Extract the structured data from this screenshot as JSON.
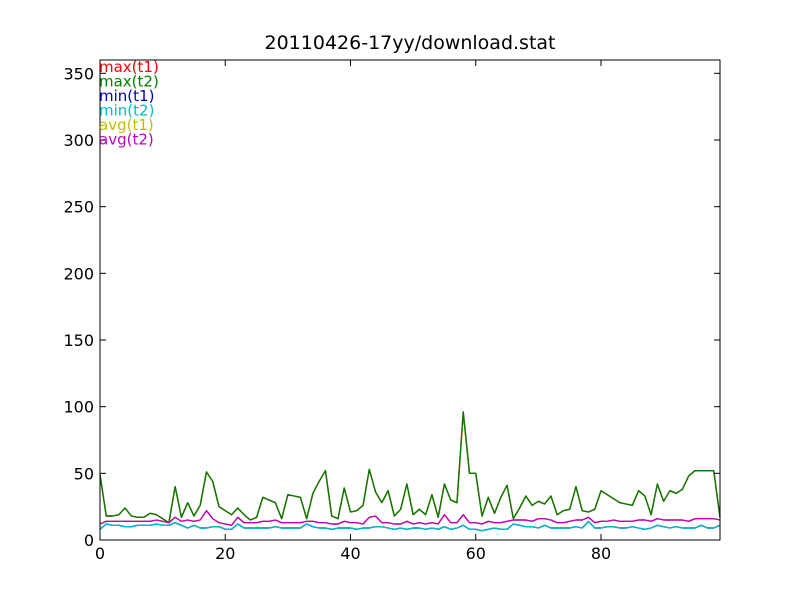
{
  "chart_data": {
    "type": "line",
    "title": "20110426-17yy/download.stat",
    "xlabel": "",
    "ylabel": "",
    "xlim": [
      0,
      99
    ],
    "ylim": [
      0,
      360
    ],
    "xticks": [
      0,
      20,
      40,
      60,
      80
    ],
    "yticks": [
      0,
      50,
      100,
      150,
      200,
      250,
      300,
      350
    ],
    "grid": false,
    "legend_position": "top-left",
    "x": [
      0,
      1,
      2,
      3,
      4,
      5,
      6,
      7,
      8,
      9,
      10,
      11,
      12,
      13,
      14,
      15,
      16,
      17,
      18,
      19,
      20,
      21,
      22,
      23,
      24,
      25,
      26,
      27,
      28,
      29,
      30,
      31,
      32,
      33,
      34,
      35,
      36,
      37,
      38,
      39,
      40,
      41,
      42,
      43,
      44,
      45,
      46,
      47,
      48,
      49,
      50,
      51,
      52,
      53,
      54,
      55,
      56,
      57,
      58,
      59,
      60,
      61,
      62,
      63,
      64,
      65,
      66,
      67,
      68,
      69,
      70,
      71,
      72,
      73,
      74,
      75,
      76,
      77,
      78,
      79,
      80,
      81,
      82,
      83,
      84,
      85,
      86,
      87,
      88,
      89,
      90,
      91,
      92,
      93,
      94,
      95,
      96,
      97,
      98,
      99
    ],
    "series": [
      {
        "name": "max(t1)",
        "color": "#ff0000",
        "values": [
          49,
          18,
          18,
          19,
          24,
          18,
          17,
          17,
          20,
          19,
          16,
          13,
          40,
          17,
          28,
          18,
          26,
          51,
          44,
          25,
          22,
          19,
          24,
          19,
          15,
          17,
          32,
          30,
          28,
          16,
          34,
          33,
          32,
          16,
          35,
          44,
          52,
          18,
          16,
          39,
          21,
          22,
          26,
          53,
          36,
          28,
          37,
          18,
          23,
          42,
          19,
          23,
          19,
          34,
          17,
          42,
          30,
          28,
          96,
          50,
          50,
          18,
          32,
          20,
          32,
          41,
          16,
          24,
          33,
          26,
          29,
          27,
          33,
          19,
          22,
          23,
          40,
          22,
          21,
          23,
          37,
          34,
          31,
          28,
          27,
          26,
          37,
          33,
          19,
          42,
          29,
          37,
          35,
          38,
          48,
          52,
          52,
          52,
          52,
          17
        ]
      },
      {
        "name": "max(t2)",
        "color": "#008000",
        "values": [
          49,
          18,
          18,
          19,
          24,
          18,
          17,
          17,
          20,
          19,
          16,
          13,
          40,
          17,
          28,
          18,
          26,
          51,
          44,
          25,
          22,
          19,
          24,
          19,
          15,
          17,
          32,
          30,
          28,
          16,
          34,
          33,
          32,
          16,
          35,
          44,
          52,
          18,
          16,
          39,
          21,
          22,
          26,
          53,
          36,
          28,
          37,
          18,
          23,
          42,
          19,
          23,
          19,
          34,
          17,
          42,
          30,
          28,
          96,
          50,
          50,
          18,
          32,
          20,
          32,
          41,
          16,
          24,
          33,
          26,
          29,
          27,
          33,
          19,
          22,
          23,
          40,
          22,
          21,
          23,
          37,
          34,
          31,
          28,
          27,
          26,
          37,
          33,
          19,
          42,
          29,
          37,
          35,
          38,
          48,
          52,
          52,
          52,
          52,
          17
        ]
      },
      {
        "name": "min(t1)",
        "color": "#0000bf",
        "values": [
          8,
          12,
          11,
          11,
          10,
          10,
          11,
          11,
          11,
          12,
          11,
          11,
          13,
          11,
          9,
          11,
          9,
          9,
          10,
          10,
          8,
          8,
          12,
          9,
          9,
          9,
          9,
          9,
          10,
          9,
          9,
          9,
          9,
          12,
          10,
          9,
          9,
          8,
          9,
          9,
          9,
          8,
          9,
          9,
          10,
          10,
          9,
          8,
          9,
          8,
          9,
          9,
          8,
          9,
          8,
          10,
          8,
          9,
          11,
          8,
          8,
          7,
          8,
          9,
          8,
          8,
          12,
          11,
          10,
          10,
          9,
          11,
          9,
          9,
          9,
          9,
          10,
          9,
          14,
          9,
          9,
          10,
          10,
          9,
          9,
          10,
          9,
          8,
          9,
          11,
          10,
          9,
          10,
          9,
          9,
          9,
          11,
          9,
          9,
          11
        ]
      },
      {
        "name": "min(t2)",
        "color": "#00bfbf",
        "values": [
          8,
          12,
          11,
          11,
          10,
          10,
          11,
          11,
          11,
          12,
          11,
          11,
          13,
          11,
          9,
          11,
          9,
          9,
          10,
          10,
          8,
          8,
          12,
          9,
          9,
          9,
          9,
          9,
          10,
          9,
          9,
          9,
          9,
          12,
          10,
          9,
          9,
          8,
          9,
          9,
          9,
          8,
          9,
          9,
          10,
          10,
          9,
          8,
          9,
          8,
          9,
          9,
          8,
          9,
          8,
          10,
          8,
          9,
          11,
          8,
          8,
          7,
          8,
          9,
          8,
          8,
          12,
          11,
          10,
          10,
          9,
          11,
          9,
          9,
          9,
          9,
          10,
          9,
          14,
          9,
          9,
          10,
          10,
          9,
          9,
          10,
          9,
          8,
          9,
          11,
          10,
          9,
          10,
          9,
          9,
          9,
          11,
          9,
          9,
          11
        ]
      },
      {
        "name": "avg(t1)",
        "color": "#bfbf00",
        "values": [
          12,
          14,
          14,
          14,
          14,
          14,
          14,
          14,
          14,
          15,
          14,
          13,
          17,
          14,
          15,
          14,
          15,
          22,
          16,
          13,
          12,
          11,
          17,
          13,
          13,
          13,
          14,
          14,
          15,
          13,
          13,
          13,
          13,
          14,
          14,
          13,
          13,
          12,
          12,
          14,
          13,
          13,
          12,
          17,
          18,
          13,
          13,
          12,
          12,
          14,
          12,
          13,
          12,
          13,
          12,
          19,
          13,
          13,
          19,
          13,
          13,
          12,
          14,
          13,
          13,
          14,
          15,
          15,
          15,
          14,
          16,
          16,
          15,
          13,
          13,
          14,
          15,
          15,
          17,
          13,
          14,
          14,
          15,
          14,
          14,
          14,
          15,
          15,
          14,
          16,
          15,
          15,
          15,
          15,
          14,
          16,
          16,
          16,
          16,
          15
        ]
      },
      {
        "name": "avg(t2)",
        "color": "#bf00bf",
        "values": [
          12,
          14,
          14,
          14,
          14,
          14,
          14,
          14,
          14,
          15,
          14,
          13,
          17,
          14,
          15,
          14,
          15,
          22,
          16,
          13,
          12,
          11,
          17,
          13,
          13,
          13,
          14,
          14,
          15,
          13,
          13,
          13,
          13,
          14,
          14,
          13,
          13,
          12,
          12,
          14,
          13,
          13,
          12,
          17,
          18,
          13,
          13,
          12,
          12,
          14,
          12,
          13,
          12,
          13,
          12,
          19,
          13,
          13,
          19,
          13,
          13,
          12,
          14,
          13,
          13,
          14,
          15,
          15,
          15,
          14,
          16,
          16,
          15,
          13,
          13,
          14,
          15,
          15,
          17,
          13,
          14,
          14,
          15,
          14,
          14,
          14,
          15,
          15,
          14,
          16,
          15,
          15,
          15,
          15,
          14,
          16,
          16,
          16,
          16,
          15
        ]
      }
    ]
  }
}
